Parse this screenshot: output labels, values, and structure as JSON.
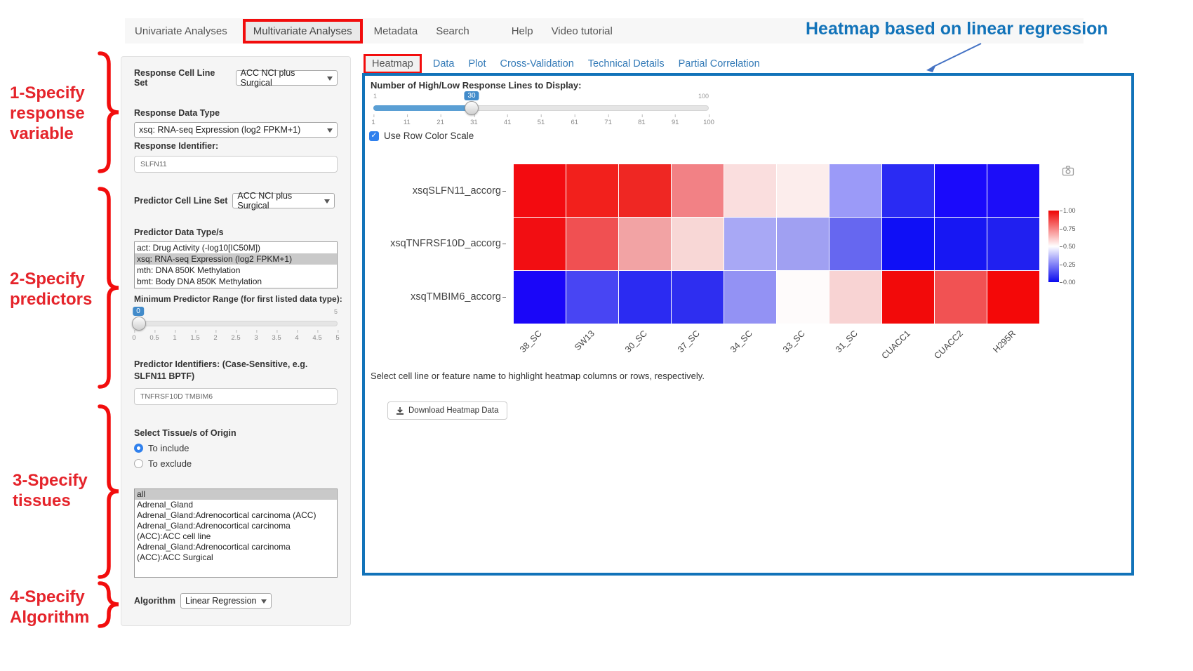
{
  "nav": {
    "items": [
      "Univariate Analyses",
      "Multivariate Analyses",
      "Metadata",
      "Search",
      "Help",
      "Video tutorial"
    ],
    "active_index": 1
  },
  "annotations": {
    "heading": "Heatmap based on linear regression",
    "steps": [
      {
        "lines": [
          "1-Specify",
          "response",
          "variable"
        ]
      },
      {
        "lines": [
          "2-Specify",
          "predictors"
        ]
      },
      {
        "lines": [
          "3-Specify",
          "tissues"
        ]
      },
      {
        "lines": [
          "4-Specify",
          "Algorithm"
        ]
      }
    ],
    "colors": {
      "bracket_red": "#f20d0d",
      "text_red": "#e5242b",
      "heading_blue": "#1273b9",
      "arrow_blue": "#4472c4",
      "panel_border_blue": "#1273b9"
    }
  },
  "sidebar": {
    "response_cell_line_set": {
      "label": "Response Cell Line Set",
      "value": "ACC NCI plus Surgical"
    },
    "response_data_type": {
      "label": "Response Data Type",
      "value": "xsq: RNA-seq Expression (log2 FPKM+1)"
    },
    "response_identifier": {
      "label": "Response Identifier:",
      "value": "SLFN11"
    },
    "predictor_cell_line_set": {
      "label": "Predictor Cell Line Set",
      "value": "ACC NCI plus Surgical"
    },
    "predictor_data_types": {
      "label": "Predictor Data Type/s",
      "options": [
        "act: Drug Activity (-log10[IC50M])",
        "xsq: RNA-seq Expression (log2 FPKM+1)",
        "mth: DNA 850K Methylation",
        "bmt: Body DNA 850K Methylation"
      ],
      "selected_index": 1
    },
    "min_predictor_range": {
      "label": "Minimum Predictor Range (for first listed data type):",
      "value": "0",
      "max_label": "5",
      "ticks": [
        "0",
        "0.5",
        "1",
        "1.5",
        "2",
        "2.5",
        "3",
        "3.5",
        "4",
        "4.5",
        "5"
      ]
    },
    "predictor_identifiers": {
      "label": "Predictor Identifiers: (Case-Sensitive, e.g. SLFN11 BPTF)",
      "value": "TNFRSF10D TMBIM6"
    },
    "tissues": {
      "label": "Select Tissue/s of Origin",
      "radios": [
        {
          "label": "To include",
          "checked": true
        },
        {
          "label": "To exclude",
          "checked": false
        }
      ],
      "options": [
        "all",
        "Adrenal_Gland",
        "Adrenal_Gland:Adrenocortical carcinoma (ACC)",
        "Adrenal_Gland:Adrenocortical carcinoma (ACC):ACC cell line",
        "Adrenal_Gland:Adrenocortical carcinoma (ACC):ACC Surgical"
      ],
      "selected_index": 0
    },
    "algorithm": {
      "label": "Algorithm",
      "value": "Linear Regression"
    }
  },
  "main": {
    "tabs": [
      "Heatmap",
      "Data",
      "Plot",
      "Cross-Validation",
      "Technical Details",
      "Partial Correlation"
    ],
    "active_tab_index": 0,
    "lines_slider": {
      "label": "Number of High/Low Response Lines to Display:",
      "value": "30",
      "min": "1",
      "max": "100",
      "ticks": [
        "1",
        "11",
        "21",
        "31",
        "41",
        "51",
        "61",
        "71",
        "81",
        "91",
        "100"
      ]
    },
    "row_color_scale": {
      "label": "Use Row Color Scale",
      "checked": true
    },
    "hint": "Select cell line or feature name to highlight heatmap columns or rows, respectively.",
    "download_button": "Download Heatmap Data"
  },
  "chart_data": {
    "type": "heatmap",
    "title": "",
    "x": [
      "38_SC",
      "SW13",
      "30_SC",
      "37_SC",
      "34_SC",
      "33_SC",
      "31_SC",
      "CUACC1",
      "CUACC2",
      "H295R"
    ],
    "y": [
      "xsqSLFN11_accorg",
      "xsqTNFRSF10D_accorg",
      "xsqTMBIM6_accorg"
    ],
    "values": [
      [
        0.99,
        0.96,
        0.95,
        0.76,
        0.56,
        0.53,
        0.31,
        0.07,
        0.02,
        0.02
      ],
      [
        0.99,
        0.84,
        0.68,
        0.57,
        0.32,
        0.31,
        0.21,
        0.02,
        0.03,
        0.05
      ],
      [
        0.02,
        0.13,
        0.07,
        0.08,
        0.3,
        0.5,
        0.57,
        0.98,
        0.83,
        0.99
      ]
    ],
    "cell_colors": [
      [
        "#F30B10",
        "#F2201C",
        "#EF2723",
        "#F28185",
        "#FADEDE",
        "#FCEDEC",
        "#9B9AF8",
        "#2A2BF3",
        "#1A0AFB",
        "#1C0DF8"
      ],
      [
        "#F20E12",
        "#F05052",
        "#F2A3A4",
        "#F8D7D6",
        "#A8A8F5",
        "#A0A0F2",
        "#6667F0",
        "#0F0FF6",
        "#1717F3",
        "#2020F0"
      ],
      [
        "#1A06F8",
        "#4845F3",
        "#2B2BF2",
        "#2E2EF0",
        "#9392F4",
        "#FEFBFB",
        "#F8D3D3",
        "#F20A0A",
        "#F15253",
        "#F40808"
      ]
    ],
    "colorscale": "blue-white-red",
    "value_range": [
      0,
      1
    ],
    "colorbar": {
      "ticks": [
        "1.00",
        "0.75",
        "0.50",
        "0.25",
        "0.00"
      ],
      "stops": [
        "#ee0404",
        "#ffffff",
        "#0909ee"
      ]
    },
    "legend_position": "right",
    "grid": false
  },
  "icons": {
    "camera-icon": "svg-camera-outline",
    "download-icon": "svg-arrow-into-tray",
    "chevron-down-icon": "triangle-down",
    "check-icon": "✓"
  }
}
